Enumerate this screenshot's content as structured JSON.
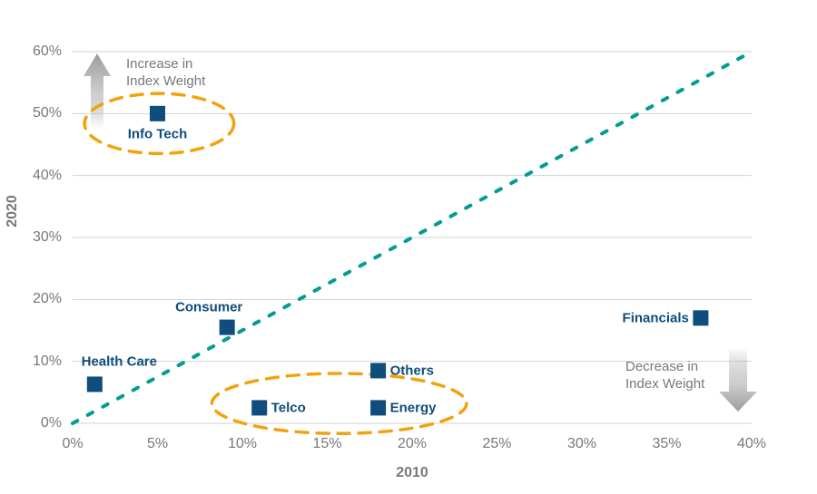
{
  "chart_data": {
    "type": "scatter",
    "xlabel": "2010",
    "ylabel": "2020",
    "xlim": [
      0,
      40
    ],
    "ylim": [
      0,
      60
    ],
    "grid": "horizontal",
    "legend": "none",
    "x_ticks": [
      {
        "value": 0,
        "label": "0%"
      },
      {
        "value": 5,
        "label": "5%"
      },
      {
        "value": 10,
        "label": "10%"
      },
      {
        "value": 15,
        "label": "15%"
      },
      {
        "value": 20,
        "label": "20%"
      },
      {
        "value": 25,
        "label": "25%"
      },
      {
        "value": 30,
        "label": "30%"
      },
      {
        "value": 35,
        "label": "35%"
      },
      {
        "value": 40,
        "label": "40%"
      }
    ],
    "y_ticks": [
      {
        "value": 0,
        "label": "0%"
      },
      {
        "value": 10,
        "label": "10%"
      },
      {
        "value": 20,
        "label": "20%"
      },
      {
        "value": 30,
        "label": "30%"
      },
      {
        "value": 40,
        "label": "40%"
      },
      {
        "value": 50,
        "label": "50%"
      },
      {
        "value": 60,
        "label": "60%"
      }
    ],
    "points": [
      {
        "name": "Info Tech",
        "x": 5,
        "y": 50,
        "label_pos": "below"
      },
      {
        "name": "Consumer",
        "x": 9.1,
        "y": 15.5,
        "label_pos": "above-left"
      },
      {
        "name": "Health Care",
        "x": 1.3,
        "y": 6.3,
        "label_pos": "above-right"
      },
      {
        "name": "Telco",
        "x": 11,
        "y": 2.5,
        "label_pos": "right"
      },
      {
        "name": "Others",
        "x": 18,
        "y": 8.5,
        "label_pos": "right"
      },
      {
        "name": "Energy",
        "x": 18,
        "y": 2.5,
        "label_pos": "right"
      },
      {
        "name": "Financials",
        "x": 37,
        "y": 17,
        "label_pos": "left"
      }
    ],
    "reference_line": {
      "from": [
        0,
        0
      ],
      "to": [
        40,
        60
      ],
      "style": "dotted"
    },
    "highlights": [
      {
        "name": "info-tech-ellipse",
        "cx": 5.1,
        "cy": 48.4,
        "rx": 4.4,
        "ry": 4.85
      },
      {
        "name": "telco-energy-ellipse",
        "cx": 15.7,
        "cy": 3.2,
        "rx": 7.5,
        "ry": 4.85
      }
    ],
    "annotations": {
      "increase": {
        "text": "Increase in\nIndex Weight",
        "arrow": "up"
      },
      "decrease": {
        "text": "Decrease in\nIndex Weight",
        "arrow": "down"
      }
    }
  },
  "colors": {
    "point_navy": "#0e4d7c",
    "reference_teal": "#009c94",
    "highlight_orange": "#f2a20d",
    "axis_text_gray": "#77787b",
    "gridline_gray": "#d2d2d2",
    "arrow_gray": "#9b9b9b"
  }
}
